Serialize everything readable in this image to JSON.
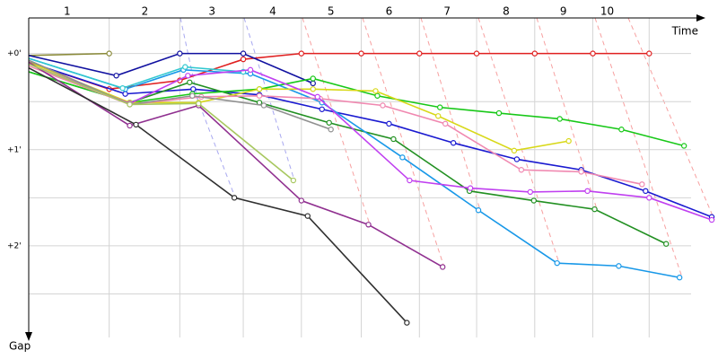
{
  "chart_data": {
    "type": "line",
    "x_label": "Time",
    "y_label": "Gap",
    "xlim": [
      0,
      77
    ],
    "ylim": [
      -0.37,
      3.0
    ],
    "xticks": [
      {
        "value": 4.3,
        "label": "1"
      },
      {
        "value": 13,
        "label": "2"
      },
      {
        "value": 20.5,
        "label": "3"
      },
      {
        "value": 27.3,
        "label": "4"
      },
      {
        "value": 33.8,
        "label": "5"
      },
      {
        "value": 40.3,
        "label": "6"
      },
      {
        "value": 46.8,
        "label": "7"
      },
      {
        "value": 53.4,
        "label": "8"
      },
      {
        "value": 59.8,
        "label": "9"
      },
      {
        "value": 64.7,
        "label": "10"
      }
    ],
    "x_grid": [
      9,
      16.9,
      24,
      30.5,
      37.2,
      43.7,
      50.1,
      56.6,
      63.1,
      69.4
    ],
    "yticks": [
      {
        "value": 0,
        "label": "+0'"
      },
      {
        "value": 1,
        "label": "+1'"
      },
      {
        "value": 2,
        "label": "+2'"
      }
    ],
    "y_minor_grid": [
      0.5,
      1.5,
      2.5
    ],
    "series": [
      {
        "color": "#e02020",
        "x": [
          0,
          9,
          16.9,
          24,
          30.5,
          37.2,
          43.7,
          50.1,
          56.6,
          63.1,
          69.4
        ],
        "values": [
          0.09,
          0.37,
          0.28,
          0.06,
          0,
          0,
          0,
          0,
          0,
          0,
          0
        ]
      },
      {
        "color": "#8a8a3a",
        "x": [
          0,
          9
        ],
        "values": [
          0.02,
          0
        ]
      },
      {
        "color": "#1010a0",
        "x": [
          0,
          9.8,
          16.9,
          24,
          31.8
        ],
        "values": [
          0.02,
          0.23,
          0,
          0,
          0.31
        ]
      },
      {
        "color": "#1a1ad0",
        "x": [
          0,
          10.8,
          18.4,
          25.8,
          32.8,
          40.3,
          47.5,
          54.6,
          61.8,
          69,
          76.4
        ],
        "values": [
          0.09,
          0.42,
          0.37,
          0.43,
          0.58,
          0.73,
          0.93,
          1.1,
          1.21,
          1.43,
          1.7
        ]
      },
      {
        "color": "#229022",
        "x": [
          0,
          11.3,
          18,
          25.8,
          33.6,
          40.8,
          49.3,
          56.5,
          63.3,
          71.3
        ],
        "values": [
          0.19,
          0.51,
          0.3,
          0.51,
          0.72,
          0.89,
          1.43,
          1.53,
          1.62,
          1.98
        ]
      },
      {
        "color": "#18c818",
        "x": [
          0,
          11.3,
          18.3,
          25.8,
          31.8,
          39,
          46,
          52.6,
          59.4,
          66.3,
          73.3
        ],
        "values": [
          0.19,
          0.51,
          0.42,
          0.37,
          0.26,
          0.44,
          0.56,
          0.62,
          0.68,
          0.79,
          0.96
        ]
      },
      {
        "color": "#1898e8",
        "x": [
          0,
          10.8,
          17.3,
          24.8,
          32.8,
          41.8,
          50.3,
          59.1,
          66,
          72.8
        ],
        "values": [
          0.05,
          0.37,
          0.17,
          0.21,
          0.51,
          1.08,
          1.63,
          2.18,
          2.21,
          2.33
        ]
      },
      {
        "color": "#30c8d0",
        "x": [
          0,
          10.5,
          17.5,
          24
        ],
        "values": [
          0.05,
          0.36,
          0.14,
          0.19
        ]
      },
      {
        "color": "#d8d818",
        "x": [
          0,
          11.3,
          19,
          25.8,
          31.8,
          38.8,
          45.8,
          54.3,
          60.4
        ],
        "values": [
          0.09,
          0.51,
          0.51,
          0.37,
          0.37,
          0.39,
          0.65,
          1.01,
          0.91
        ]
      },
      {
        "color": "#f088b0",
        "x": [
          0,
          11.3,
          19.3,
          25.8,
          32.6,
          39.6,
          46.6,
          55.1,
          61.8,
          68.6
        ],
        "values": [
          0.13,
          0.53,
          0.45,
          0.44,
          0.47,
          0.54,
          0.73,
          1.21,
          1.23,
          1.36
        ]
      },
      {
        "color": "#c040f0",
        "x": [
          0,
          11.3,
          17.8,
          24.8,
          32.3,
          42.6,
          49.4,
          56.1,
          62.5,
          69.4,
          76.4
        ],
        "values": [
          0.11,
          0.52,
          0.23,
          0.17,
          0.45,
          1.32,
          1.4,
          1.44,
          1.43,
          1.5,
          1.73
        ]
      },
      {
        "color": "#903090",
        "x": [
          0,
          11.3,
          19,
          30.5,
          38,
          46.3
        ],
        "values": [
          0.09,
          0.75,
          0.54,
          1.53,
          1.78,
          2.22
        ]
      },
      {
        "color": "#909090",
        "x": [
          0,
          11.3,
          18.3,
          26.3,
          33.8
        ],
        "values": [
          0.07,
          0.53,
          0.44,
          0.54,
          0.79
        ]
      },
      {
        "color": "#a8c860",
        "x": [
          0,
          11.3,
          19,
          29.6
        ],
        "values": [
          0.11,
          0.53,
          0.52,
          1.32
        ]
      },
      {
        "color": "#303030",
        "x": [
          0,
          12,
          23,
          31.2,
          42.3
        ],
        "values": [
          0.15,
          0.74,
          1.5,
          1.69,
          2.8
        ]
      }
    ]
  }
}
